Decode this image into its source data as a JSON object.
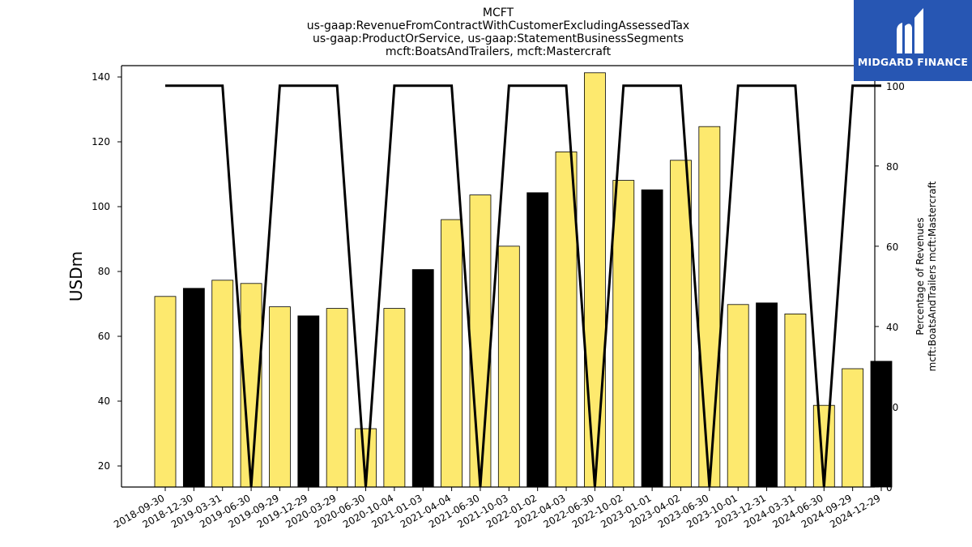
{
  "chart_data": {
    "type": "bar",
    "title_lines": [
      "MCFT",
      "us-gaap:RevenueFromContractWithCustomerExcludingAssessedTax",
      "us-gaap:ProductOrService, us-gaap:StatementBusinessSegments",
      "mcft:BoatsAndTrailers, mcft:Mastercraft"
    ],
    "ylabel": "USDm",
    "y2label_lines": [
      "Percentage of Revenues",
      "mcft:BoatsAndTrailers mcft:Mastercraft"
    ],
    "categories": [
      "2018-09-30",
      "2018-12-30",
      "2019-03-31",
      "2019-06-30",
      "2019-09-29",
      "2019-12-29",
      "2020-03-29",
      "2020-06-30",
      "2020-10-04",
      "2021-01-03",
      "2021-04-04",
      "2021-06-30",
      "2021-10-03",
      "2022-01-02",
      "2022-04-03",
      "2022-06-30",
      "2022-10-02",
      "2023-01-01",
      "2023-04-02",
      "2023-06-30",
      "2023-10-01",
      "2023-12-31",
      "2024-03-31",
      "2024-06-30",
      "2024-09-29",
      "2024-12-29"
    ],
    "values": [
      72.3,
      74.8,
      77.3,
      76.3,
      69.1,
      66.3,
      68.6,
      31.5,
      68.6,
      80.6,
      96.0,
      103.6,
      87.8,
      104.3,
      116.9,
      141.3,
      108.1,
      105.2,
      114.3,
      124.7,
      69.8,
      70.3,
      66.9,
      38.7,
      50.0,
      52.3
    ],
    "bar_colors": [
      "#fde96e",
      "#000000",
      "#fde96e",
      "#fde96e",
      "#fde96e",
      "#000000",
      "#fde96e",
      "#fde96e",
      "#fde96e",
      "#000000",
      "#fde96e",
      "#fde96e",
      "#fde96e",
      "#000000",
      "#fde96e",
      "#fde96e",
      "#fde96e",
      "#000000",
      "#fde96e",
      "#fde96e",
      "#fde96e",
      "#000000",
      "#fde96e",
      "#fde96e",
      "#fde96e",
      "#000000"
    ],
    "percentage_series": [
      100,
      100,
      100,
      0,
      100,
      100,
      100,
      0,
      100,
      100,
      100,
      0,
      100,
      100,
      100,
      0,
      100,
      100,
      100,
      0,
      100,
      100,
      100,
      0,
      100,
      100
    ],
    "ylim": [
      13.5,
      143.5
    ],
    "yticks": [
      20,
      40,
      60,
      80,
      100,
      120,
      140
    ],
    "y2lim": [
      0,
      105
    ],
    "y2ticks": [
      0,
      20,
      40,
      60,
      80,
      100
    ],
    "grid": false,
    "line_color": "#000000"
  },
  "logo": {
    "text": "MIDGARD FINANCE",
    "background": "#2756b3"
  }
}
